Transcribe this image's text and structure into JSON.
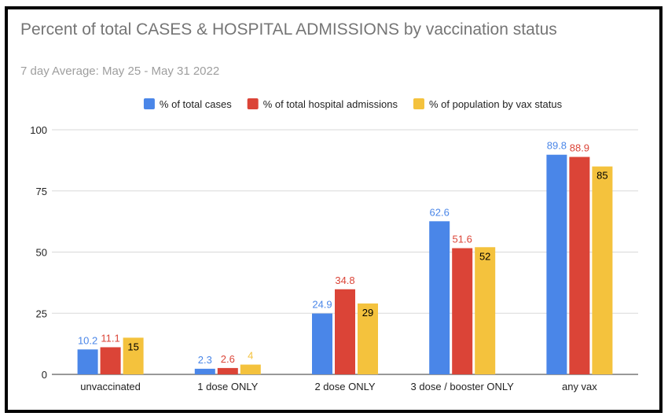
{
  "chart_data": {
    "type": "bar",
    "title": "Percent of total CASES & HOSPITAL ADMISSIONS by vaccination status",
    "subtitle": "7 day Average: May 25 - May 31 2022",
    "categories": [
      "unvaccinated",
      "1 dose ONLY",
      "2 dose ONLY",
      "3 dose / booster ONLY",
      "any vax"
    ],
    "series": [
      {
        "name": "% of total cases",
        "color": "#4a86e8",
        "label_color": "#4a86e8",
        "values": [
          10.2,
          2.3,
          24.9,
          62.6,
          89.8
        ],
        "labels": [
          "10.2",
          "2.3",
          "24.9",
          "62.6",
          "89.8"
        ],
        "label_inside": false
      },
      {
        "name": "% of total hospital admissions",
        "color": "#db4437",
        "label_color": "#db4437",
        "values": [
          11.1,
          2.6,
          34.8,
          51.6,
          88.9
        ],
        "labels": [
          "11.1",
          "2.6",
          "34.8",
          "51.6",
          "88.9"
        ],
        "label_inside": false
      },
      {
        "name": "% of population by vax status",
        "color": "#f4c23d",
        "label_color": "#000000",
        "values": [
          15,
          4,
          29,
          52,
          85
        ],
        "labels": [
          "15",
          "4",
          "29",
          "52",
          "85"
        ],
        "label_inside": true
      }
    ],
    "ylim": [
      0,
      100
    ],
    "yticks": [
      0,
      25,
      50,
      75,
      100
    ],
    "ytick_labels": [
      "0",
      "25",
      "50",
      "75",
      "100"
    ],
    "grid": true,
    "legend_position": "top"
  }
}
